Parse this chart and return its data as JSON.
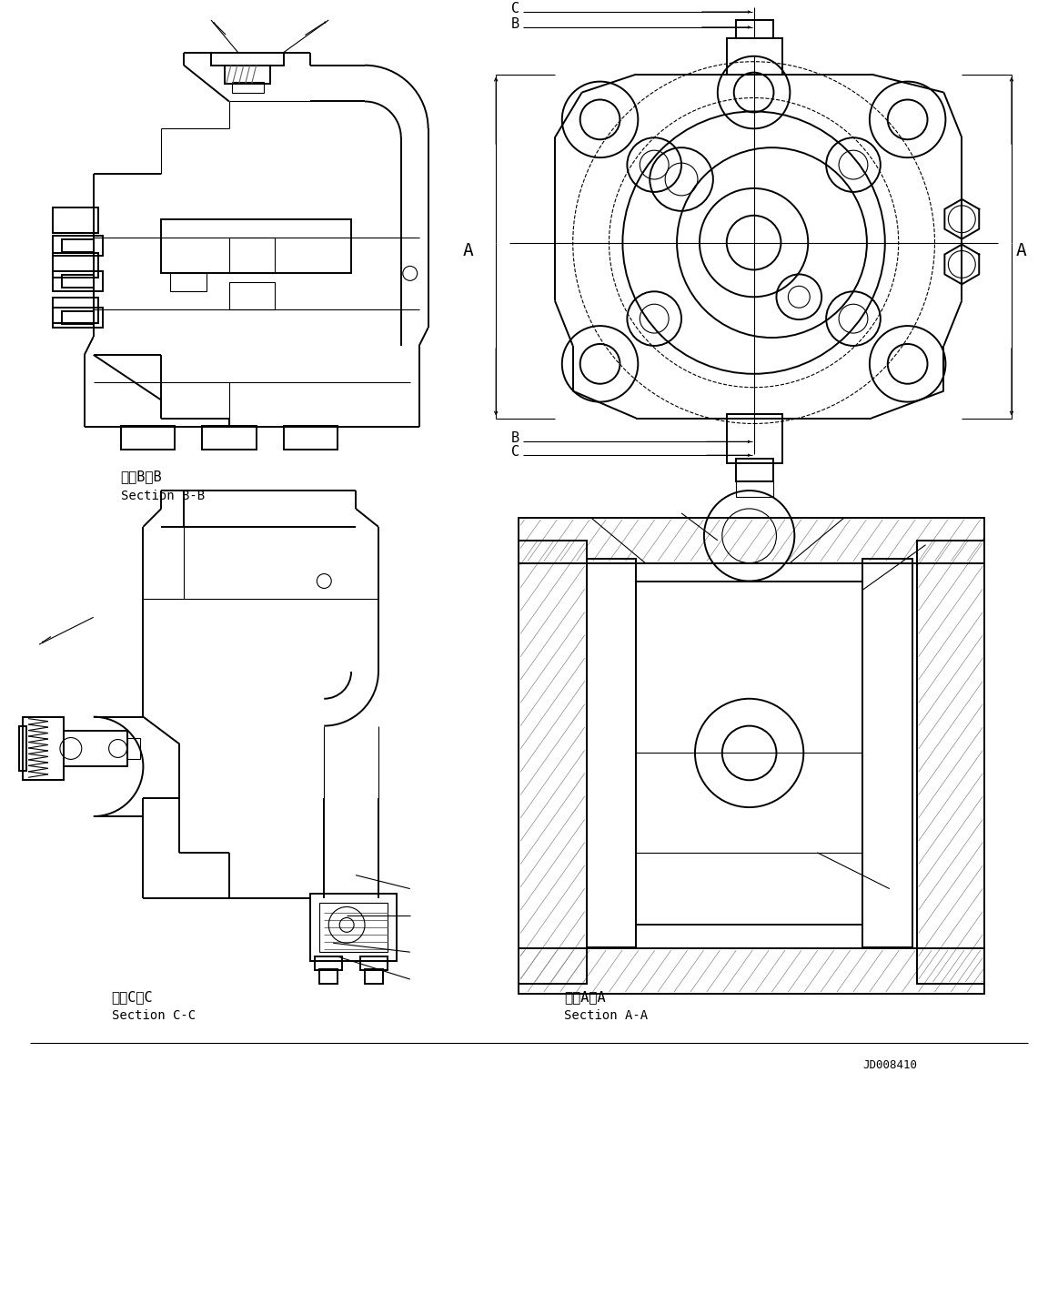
{
  "background_color": "#ffffff",
  "line_color": "#000000",
  "text_color": "#000000",
  "section_labels": {
    "bb_jp": "断面B－B",
    "bb_en": "Section B-B",
    "cc_jp": "断面C－C",
    "cc_en": "Section C-C",
    "aa_jp": "断面A－A",
    "aa_en": "Section A-A"
  },
  "doc_number": "JD008410",
  "fig_width": 11.63,
  "fig_height": 14.34,
  "dpi": 100
}
